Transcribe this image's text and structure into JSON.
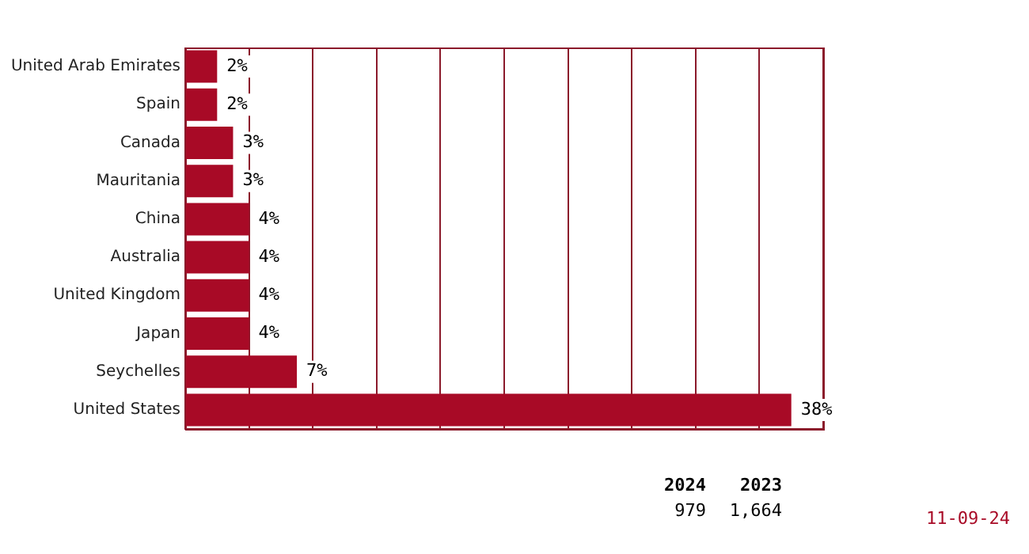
{
  "chart_data": {
    "type": "bar",
    "orientation": "horizontal",
    "categories": [
      "United Arab Emirates",
      "Spain",
      "Canada",
      "Mauritania",
      "China",
      "Australia",
      "United Kingdom",
      "Japan",
      "Seychelles",
      "United States"
    ],
    "values": [
      2,
      2,
      3,
      3,
      4,
      4,
      4,
      4,
      7,
      38
    ],
    "color": "#a80a26",
    "value_labels": [
      "2%",
      "2%",
      "3%",
      "3%",
      "4%",
      "4%",
      "4%",
      "4%",
      "7%",
      "38%"
    ],
    "xlim": [
      0,
      40
    ],
    "xticks": [
      {
        "value": 0,
        "label": null
      },
      {
        "value": 4,
        "label": null
      },
      {
        "value": 8,
        "label": null
      },
      {
        "value": 12,
        "label": null
      },
      {
        "value": 16,
        "label": null
      },
      {
        "value": 20,
        "label": null
      },
      {
        "value": 24,
        "label": null
      },
      {
        "value": 28,
        "label": null
      },
      {
        "value": 32,
        "label": null
      },
      {
        "value": 36,
        "label": null
      },
      {
        "value": 40,
        "label": null
      }
    ],
    "grid": "x",
    "tick_labels": "y",
    "legend": false,
    "annotations": [
      "2024",
      "2023",
      "979",
      "1,664",
      "11-09-24"
    ]
  }
}
